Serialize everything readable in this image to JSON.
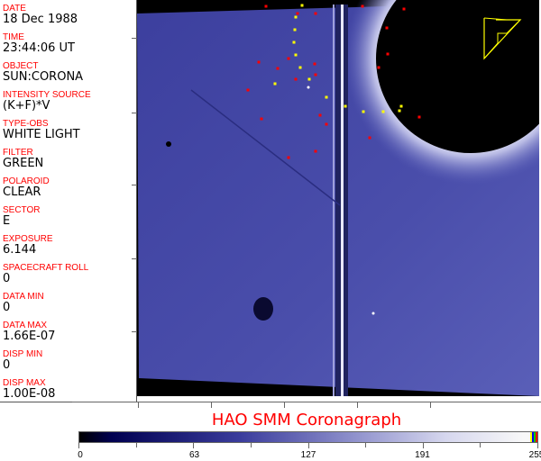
{
  "panel": [
    {
      "label": "DATE",
      "value": "18 Dec 1988"
    },
    {
      "label": "TIME",
      "value": "23:44:06 UT"
    },
    {
      "label": "OBJECT",
      "value": "SUN:CORONA"
    },
    {
      "label": "INTENSITY SOURCE",
      "value": "(K+F)*V"
    },
    {
      "label": "TYPE-OBS",
      "value": "WHITE LIGHT"
    },
    {
      "label": "FILTER",
      "value": "GREEN"
    },
    {
      "label": "POLAROID",
      "value": "CLEAR"
    },
    {
      "label": "SECTOR",
      "value": "E"
    },
    {
      "label": "EXPOSURE",
      "value": "6.144"
    },
    {
      "label": "SPACECRAFT ROLL",
      "value": "0"
    },
    {
      "label": "DATA MIN",
      "value": "0"
    },
    {
      "label": "DATA MAX",
      "value": "1.66E-07"
    },
    {
      "label": "DISP MIN",
      "value": "0"
    },
    {
      "label": "DISP MAX",
      "value": "1.00E-08"
    }
  ],
  "title": "HAO  SMM Coronagraph",
  "colorbar": {
    "ticks": [
      "0",
      "63",
      "127",
      "191",
      "255"
    ],
    "colors": {
      "low": "#000000",
      "mid": "#5a5fb8",
      "high": "#f8f8f8"
    }
  }
}
